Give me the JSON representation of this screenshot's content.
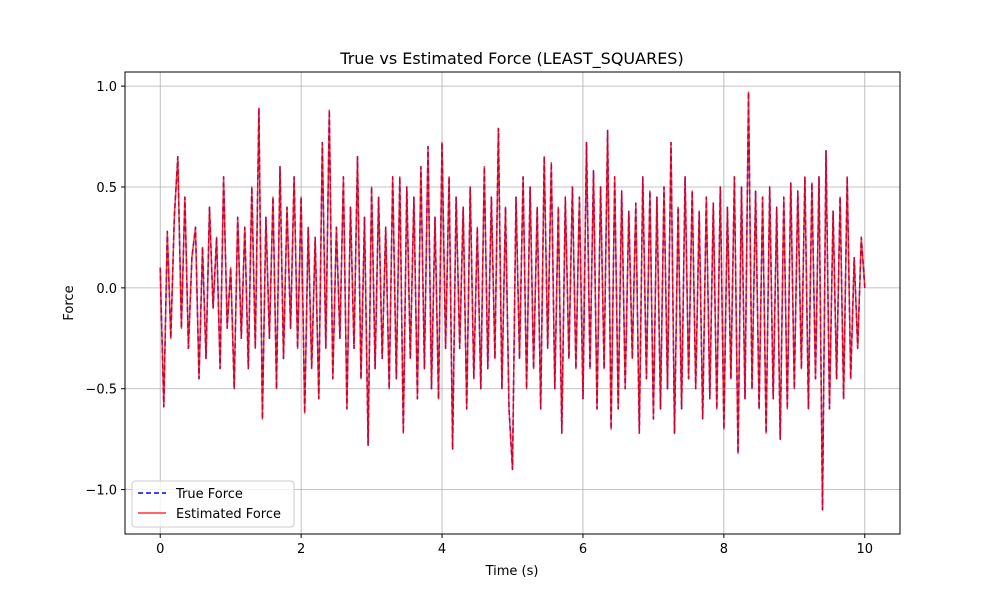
{
  "chart_data": {
    "type": "line",
    "title": "True vs Estimated Force (LEAST_SQUARES)",
    "xlabel": "Time (s)",
    "ylabel": "Force",
    "xlim": [
      -0.5,
      10.5
    ],
    "ylim": [
      -1.22,
      1.07
    ],
    "xticks": [
      0,
      2,
      4,
      6,
      8,
      10
    ],
    "xtick_labels": [
      "0",
      "2",
      "4",
      "6",
      "8",
      "10"
    ],
    "yticks": [
      -1.0,
      -0.5,
      0.0,
      0.5,
      1.0
    ],
    "ytick_labels": [
      "−1.0",
      "−0.5",
      "0.0",
      "0.5",
      "1.0"
    ],
    "grid": true,
    "legend_position": "lower-left",
    "series": [
      {
        "name": "True Force",
        "color": "#0000ff",
        "style": "dashed"
      },
      {
        "name": "Estimated Force",
        "color": "#ff0000",
        "style": "solid"
      }
    ],
    "x": [
      0.0,
      0.05,
      0.1,
      0.15,
      0.2,
      0.25,
      0.3,
      0.35,
      0.4,
      0.45,
      0.5,
      0.55,
      0.6,
      0.65,
      0.7,
      0.75,
      0.8,
      0.85,
      0.9,
      0.95,
      1.0,
      1.05,
      1.1,
      1.15,
      1.2,
      1.25,
      1.3,
      1.35,
      1.4,
      1.45,
      1.5,
      1.55,
      1.6,
      1.65,
      1.7,
      1.75,
      1.8,
      1.85,
      1.9,
      1.95,
      2.0,
      2.05,
      2.1,
      2.15,
      2.2,
      2.25,
      2.3,
      2.35,
      2.4,
      2.45,
      2.5,
      2.55,
      2.6,
      2.65,
      2.7,
      2.75,
      2.8,
      2.85,
      2.9,
      2.95,
      3.0,
      3.05,
      3.1,
      3.15,
      3.2,
      3.25,
      3.3,
      3.35,
      3.4,
      3.45,
      3.5,
      3.55,
      3.6,
      3.65,
      3.7,
      3.75,
      3.8,
      3.85,
      3.9,
      3.95,
      4.0,
      4.05,
      4.1,
      4.15,
      4.2,
      4.25,
      4.3,
      4.35,
      4.4,
      4.45,
      4.5,
      4.55,
      4.6,
      4.65,
      4.7,
      4.75,
      4.8,
      4.85,
      4.9,
      4.95,
      5.0,
      5.05,
      5.1,
      5.15,
      5.2,
      5.25,
      5.3,
      5.35,
      5.4,
      5.45,
      5.5,
      5.55,
      5.6,
      5.65,
      5.7,
      5.75,
      5.8,
      5.85,
      5.9,
      5.95,
      6.0,
      6.05,
      6.1,
      6.15,
      6.2,
      6.25,
      6.3,
      6.35,
      6.4,
      6.45,
      6.5,
      6.55,
      6.6,
      6.65,
      6.7,
      6.75,
      6.8,
      6.85,
      6.9,
      6.95,
      7.0,
      7.05,
      7.1,
      7.15,
      7.2,
      7.25,
      7.3,
      7.35,
      7.4,
      7.45,
      7.5,
      7.55,
      7.6,
      7.65,
      7.7,
      7.75,
      7.8,
      7.85,
      7.9,
      7.95,
      8.0,
      8.05,
      8.1,
      8.15,
      8.2,
      8.25,
      8.3,
      8.35,
      8.4,
      8.45,
      8.5,
      8.55,
      8.6,
      8.65,
      8.7,
      8.75,
      8.8,
      8.85,
      8.9,
      8.95,
      9.0,
      9.05,
      9.1,
      9.15,
      9.2,
      9.25,
      9.3,
      9.35,
      9.4,
      9.45,
      9.5,
      9.55,
      9.6,
      9.65,
      9.7,
      9.75,
      9.8,
      9.85,
      9.9,
      9.95,
      10.0
    ],
    "y": [
      0.1,
      -0.59,
      0.28,
      -0.25,
      0.35,
      0.65,
      -0.2,
      0.45,
      -0.3,
      0.15,
      0.3,
      -0.45,
      0.2,
      -0.35,
      0.4,
      -0.1,
      0.25,
      -0.4,
      0.55,
      -0.2,
      0.1,
      -0.5,
      0.35,
      -0.25,
      0.3,
      -0.4,
      0.5,
      -0.3,
      0.89,
      -0.65,
      0.35,
      -0.25,
      0.45,
      -0.5,
      0.6,
      -0.35,
      0.4,
      -0.2,
      0.55,
      -0.3,
      0.45,
      -0.62,
      0.3,
      -0.4,
      0.25,
      -0.55,
      0.72,
      -0.3,
      0.88,
      -0.45,
      0.3,
      -0.25,
      0.55,
      -0.6,
      0.4,
      -0.3,
      0.65,
      -0.45,
      0.35,
      -0.78,
      0.5,
      -0.4,
      0.45,
      -0.35,
      0.3,
      -0.5,
      0.55,
      -0.45,
      0.55,
      -0.72,
      0.5,
      -0.35,
      0.45,
      -0.55,
      0.6,
      -0.4,
      0.7,
      -0.5,
      0.35,
      -0.55,
      0.72,
      -0.3,
      0.55,
      -0.8,
      0.45,
      -0.3,
      0.4,
      -0.6,
      0.5,
      -0.45,
      0.3,
      -0.5,
      0.6,
      -0.4,
      0.45,
      -0.35,
      0.79,
      -0.5,
      0.4,
      -0.6,
      -0.9,
      0.45,
      -0.35,
      0.55,
      -0.5,
      0.5,
      -0.4,
      0.4,
      -0.6,
      0.65,
      -0.3,
      0.62,
      -0.5,
      0.4,
      -0.72,
      0.45,
      -0.35,
      0.5,
      -0.4,
      0.45,
      -0.55,
      0.72,
      -0.4,
      0.58,
      -0.6,
      0.5,
      -0.4,
      0.78,
      -0.7,
      0.55,
      -0.6,
      0.48,
      -0.5,
      0.38,
      -0.35,
      0.42,
      -0.72,
      0.55,
      -0.45,
      0.48,
      -0.65,
      0.45,
      -0.6,
      0.5,
      -0.5,
      0.72,
      -0.72,
      0.4,
      -0.6,
      0.55,
      -0.45,
      0.48,
      -0.5,
      0.38,
      -0.65,
      0.45,
      -0.55,
      0.42,
      -0.6,
      0.5,
      -0.7,
      0.4,
      -0.45,
      0.55,
      -0.82,
      0.5,
      -0.55,
      0.97,
      -0.5,
      0.48,
      -0.6,
      0.45,
      -0.72,
      0.5,
      -0.55,
      0.4,
      -0.75,
      0.45,
      -0.6,
      0.52,
      -0.5,
      0.48,
      -0.4,
      0.55,
      -0.6,
      0.52,
      -0.45,
      0.55,
      -1.1,
      0.68,
      -0.6,
      0.38,
      -0.45,
      0.45,
      -0.55,
      0.55,
      -0.45,
      0.15,
      -0.3,
      0.25,
      0.0
    ]
  }
}
